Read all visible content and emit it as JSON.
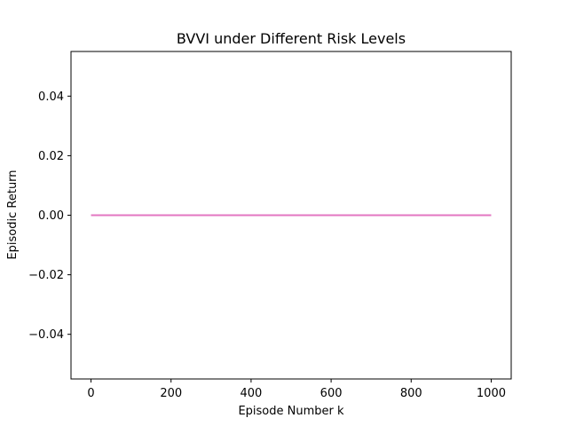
{
  "chart_data": {
    "type": "line",
    "title": "BVVI under Different Risk Levels",
    "xlabel": "Episode Number k",
    "ylabel": "Episodic Return",
    "xlim": [
      -50,
      1050
    ],
    "ylim": [
      -0.055,
      0.055
    ],
    "xticks": [
      0,
      200,
      400,
      600,
      800,
      1000
    ],
    "yticks": [
      -0.04,
      -0.02,
      0.0,
      0.02,
      0.04
    ],
    "xtick_labels": [
      "0",
      "200",
      "400",
      "600",
      "800",
      "1000"
    ],
    "ytick_labels": [
      "−0.04",
      "−0.02",
      "0.00",
      "0.02",
      "0.04"
    ],
    "grid": false,
    "series": [
      {
        "x": [
          0,
          1000
        ],
        "y": [
          0,
          0
        ],
        "color": "#e377c2"
      }
    ]
  }
}
